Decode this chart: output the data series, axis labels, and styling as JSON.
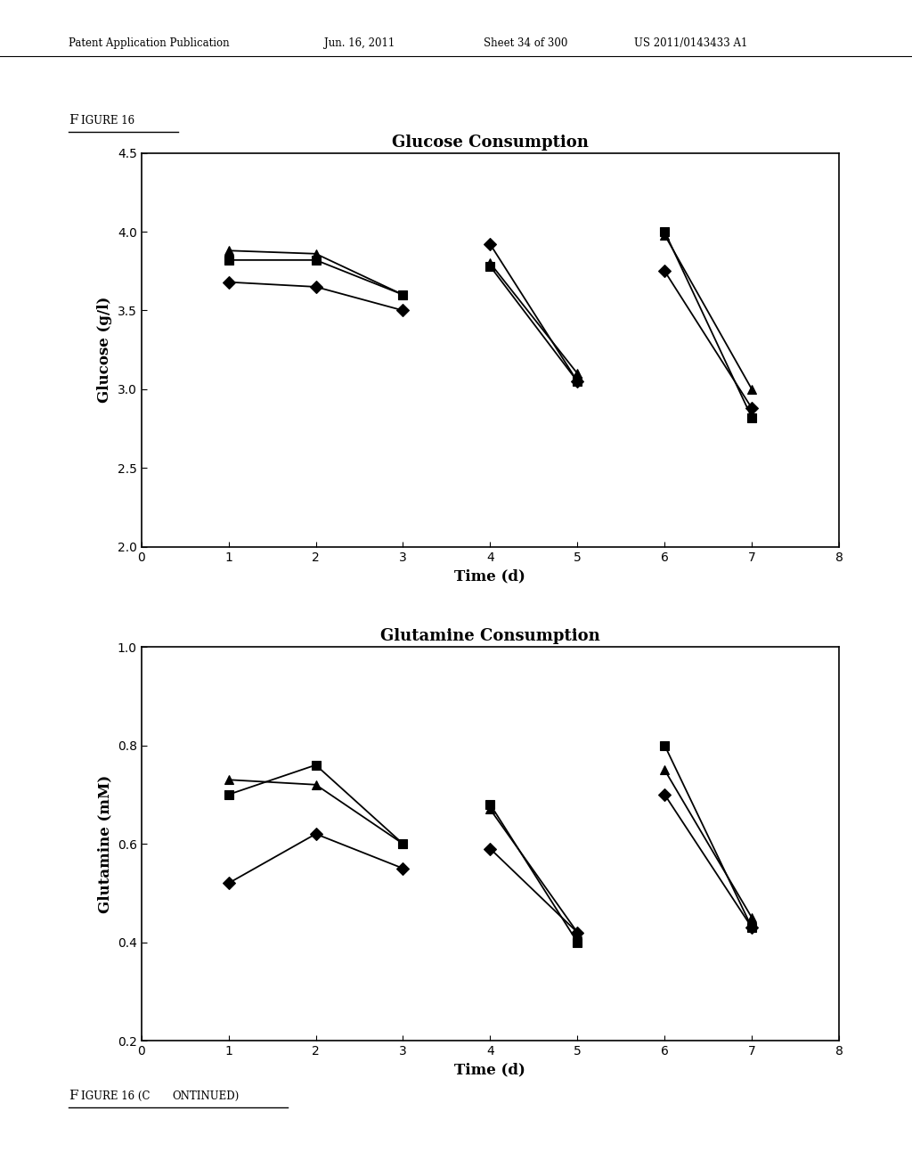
{
  "glucose": {
    "title": "Glucose Consumption",
    "ylabel": "Glucose (g/l)",
    "xlabel": "Time (d)",
    "xlim": [
      0,
      8
    ],
    "ylim": [
      2,
      4.5
    ],
    "yticks": [
      2,
      2.5,
      3,
      3.5,
      4,
      4.5
    ],
    "xticks": [
      0,
      1,
      2,
      3,
      4,
      5,
      6,
      7,
      8
    ],
    "series": [
      {
        "marker": "s",
        "segments": [
          {
            "x": [
              1,
              2,
              3
            ],
            "y": [
              3.82,
              3.82,
              3.6
            ]
          },
          {
            "x": [
              4,
              5
            ],
            "y": [
              3.78,
              3.05
            ]
          },
          {
            "x": [
              6,
              7
            ],
            "y": [
              4.0,
              2.82
            ]
          }
        ]
      },
      {
        "marker": "^",
        "segments": [
          {
            "x": [
              1,
              2,
              3
            ],
            "y": [
              3.88,
              3.86,
              3.6
            ]
          },
          {
            "x": [
              4,
              5
            ],
            "y": [
              3.8,
              3.1
            ]
          },
          {
            "x": [
              6,
              7
            ],
            "y": [
              3.98,
              3.0
            ]
          }
        ]
      },
      {
        "marker": "D",
        "segments": [
          {
            "x": [
              1,
              2,
              3
            ],
            "y": [
              3.68,
              3.65,
              3.5
            ]
          },
          {
            "x": [
              4,
              5
            ],
            "y": [
              3.92,
              3.05
            ]
          },
          {
            "x": [
              6,
              7
            ],
            "y": [
              3.75,
              2.88
            ]
          }
        ]
      }
    ]
  },
  "glutamine": {
    "title": "Glutamine Consumption",
    "ylabel": "Glutamine (mM)",
    "xlabel": "Time (d)",
    "xlim": [
      0,
      8
    ],
    "ylim": [
      0.2,
      1.0
    ],
    "yticks": [
      0.2,
      0.4,
      0.6,
      0.8,
      1.0
    ],
    "xticks": [
      0,
      1,
      2,
      3,
      4,
      5,
      6,
      7,
      8
    ],
    "series": [
      {
        "marker": "s",
        "segments": [
          {
            "x": [
              1,
              2,
              3
            ],
            "y": [
              0.7,
              0.76,
              0.6
            ]
          },
          {
            "x": [
              4,
              5
            ],
            "y": [
              0.68,
              0.4
            ]
          },
          {
            "x": [
              6,
              7
            ],
            "y": [
              0.8,
              0.43
            ]
          }
        ]
      },
      {
        "marker": "^",
        "segments": [
          {
            "x": [
              1,
              2,
              3
            ],
            "y": [
              0.73,
              0.72,
              0.6
            ]
          },
          {
            "x": [
              4,
              5
            ],
            "y": [
              0.67,
              0.42
            ]
          },
          {
            "x": [
              6,
              7
            ],
            "y": [
              0.75,
              0.45
            ]
          }
        ]
      },
      {
        "marker": "D",
        "segments": [
          {
            "x": [
              1,
              2,
              3
            ],
            "y": [
              0.52,
              0.62,
              0.55
            ]
          },
          {
            "x": [
              4,
              5
            ],
            "y": [
              0.59,
              0.42
            ]
          },
          {
            "x": [
              6,
              7
            ],
            "y": [
              0.7,
              0.43
            ]
          }
        ]
      }
    ]
  },
  "header_left": "Patent Application Publication",
  "header_center_date": "Jun. 16, 2011",
  "header_center_sheet": "Sheet 34 of 300",
  "header_right_patent": "US 2011/0143433 A1",
  "figure_label_top": "FIGURE 16",
  "figure_label_bottom": "FIGURE 16 (CONTINUED)",
  "line_color": "#000000",
  "marker_color": "#000000",
  "bg_color": "#ffffff"
}
